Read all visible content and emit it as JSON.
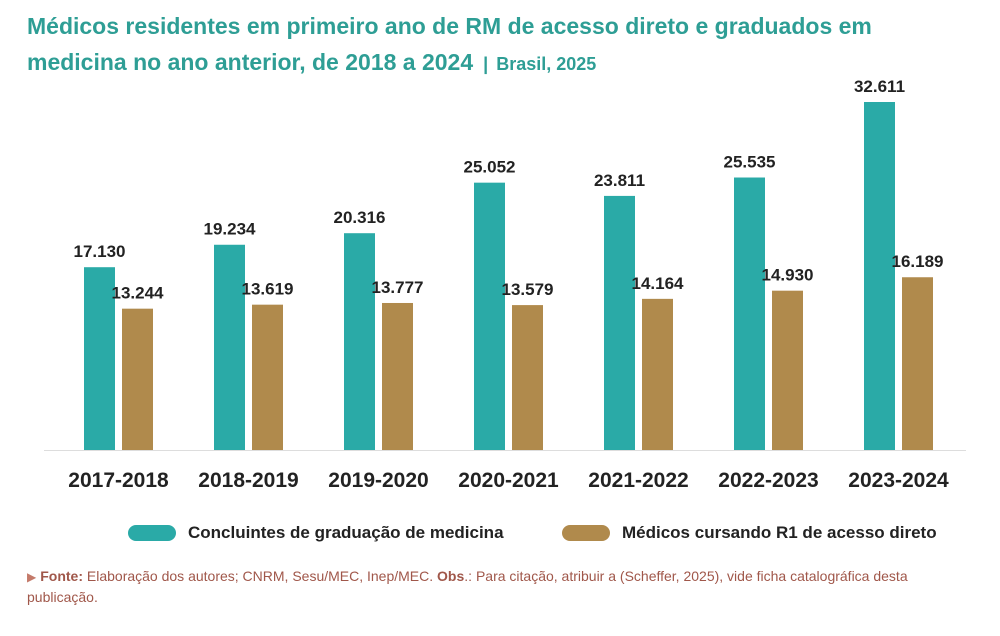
{
  "title": {
    "main": "Médicos residentes em primeiro ano de RM de acesso direto e graduados em medicina no ano anterior, de 2018 a 2024",
    "separator": "|",
    "subtitle": "Brasil, 2025"
  },
  "colors": {
    "title": "#2e9e95",
    "series_a": "#2aaaa7",
    "series_b": "#b08a4c",
    "footer": "#a0574a"
  },
  "chart_data": {
    "type": "bar",
    "categories": [
      "2017-2018",
      "2018-2019",
      "2019-2020",
      "2020-2021",
      "2021-2022",
      "2022-2023",
      "2023-2024"
    ],
    "series": [
      {
        "name": "Concluintes de graduação de medicina",
        "values": [
          17130,
          19234,
          20316,
          25052,
          23811,
          25535,
          32611
        ],
        "labels": [
          "17.130",
          "19.234",
          "20.316",
          "25.052",
          "23.811",
          "25.535",
          "32.611"
        ],
        "color": "#2aaaa7"
      },
      {
        "name": "Médicos cursando R1 de acesso direto",
        "values": [
          13244,
          13619,
          13777,
          13579,
          14164,
          14930,
          16189
        ],
        "labels": [
          "13.244",
          "13.619",
          "13.777",
          "13.579",
          "14.164",
          "14.930",
          "16.189"
        ],
        "color": "#b08a4c"
      }
    ],
    "ylim": [
      0,
      35000
    ],
    "grid": false,
    "legend": "bottom"
  },
  "footer": {
    "source_label": "Fonte:",
    "source_text": " Elaboração dos autores; CNRM, Sesu/MEC, Inep/MEC. ",
    "obs_label": "Obs",
    "obs_text": ".: Para citação, atribuir a (Scheffer, 2025), vide ficha catalográfica desta publicação."
  }
}
